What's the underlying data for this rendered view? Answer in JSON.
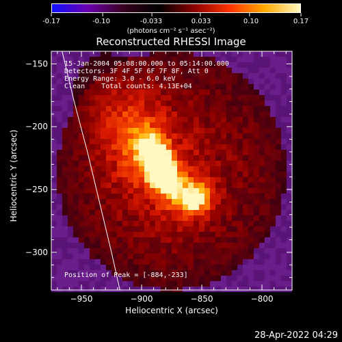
{
  "colorbar": {
    "ticks": [
      "-0.17",
      "-0.10",
      "-0.033",
      "0.033",
      "0.10",
      "0.17"
    ],
    "tick_values": [
      -0.17,
      -0.1,
      -0.033,
      0.033,
      0.1,
      0.17
    ],
    "unit": "(photons cm⁻² s⁻¹ asec⁻²)",
    "colors": [
      "#1010ff",
      "#6a00b0",
      "#3a0020",
      "#000000",
      "#8a0000",
      "#ff3300",
      "#ffaa00",
      "#fff8c0"
    ]
  },
  "chart_data": {
    "type": "heatmap",
    "title": "Reconstructed RHESSI Image",
    "xlabel": "Heliocentric X (arcsec)",
    "ylabel": "Heliocentric Y (arcsec)",
    "xlim": [
      -975,
      -775
    ],
    "ylim": [
      -330,
      -140
    ],
    "x_ticks": [
      -950,
      -900,
      -850,
      -800
    ],
    "y_ticks": [
      -150,
      -200,
      -250,
      -300
    ],
    "x_tick_labels": [
      "−950",
      "−900",
      "−850",
      "−800"
    ],
    "y_tick_labels": [
      "−150",
      "−200",
      "−250",
      "−300"
    ],
    "peak": [
      -884,
      -233
    ],
    "sources": [
      {
        "x": -885,
        "y": -232,
        "sx": 9,
        "sy": 18,
        "rot": -30,
        "amp": 1.0
      },
      {
        "x": -855,
        "y": -257,
        "sx": 10,
        "sy": 9,
        "rot": 0,
        "amp": 0.72
      },
      {
        "x": -905,
        "y": -210,
        "sx": 22,
        "sy": 40,
        "rot": -30,
        "amp": 0.35
      }
    ],
    "limb_curve": [
      [
        -966,
        -140
      ],
      [
        -956,
        -180
      ],
      [
        -945,
        -220
      ],
      [
        -935,
        -260
      ],
      [
        -925,
        -300
      ],
      [
        -918,
        -330
      ]
    ]
  },
  "annotations": {
    "line1": "15-Jan-2004 05:08:00.000 to 05:14:00.000",
    "line2": "Detectors: 3F 4F 5F 6F 7F 8F, Att 0",
    "line3": "Energy Range: 3.0 - 6.0 keV",
    "line4": "Clean    Total counts: 4.13E+04",
    "peak_label": "Position of Peak = [-884,-233]"
  },
  "footer": "28-Apr-2022 04:29"
}
